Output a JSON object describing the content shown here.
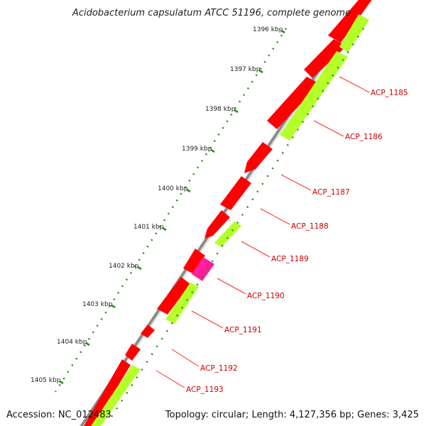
{
  "header": {
    "title": "Acidobacterium capsulatum ATCC 51196, complete genome"
  },
  "footer": {
    "accession": "Accession: NC_012483",
    "summary": "Topology: circular; Length: 4,127,356 bp; Genes: 3,425"
  },
  "ticks": [
    "1396 kbp",
    "1397 kbp",
    "1398 kbp",
    "1399 kbp",
    "1400 kbp",
    "1401 kbp",
    "1402 kbp",
    "1403 kbp",
    "1404 kbp",
    "1405 kbp"
  ],
  "gene_labels": [
    "ACP_1185",
    "ACP_1186",
    "ACP_1187",
    "ACP_1188",
    "ACP_1189",
    "ACP_1190",
    "ACP_1191",
    "ACP_1192",
    "ACP_1193"
  ],
  "colors": {
    "gene_red": "#ff0000",
    "gene_red_dark": "#c80000",
    "cds_green": "#b4ff2a",
    "misc_pink": "#ff1e9b",
    "backbone": "#7a7a7a",
    "tick_green": "#2a8a1a",
    "label_red": "#cc0000"
  }
}
